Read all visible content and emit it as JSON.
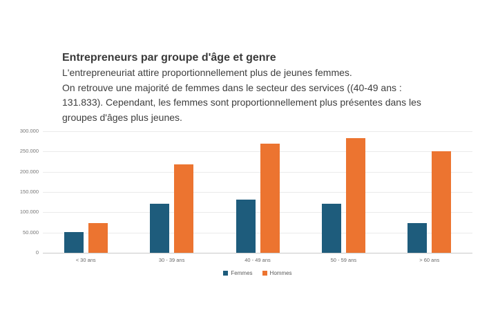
{
  "header": {
    "title": "Entrepreneurs par groupe d'âge et genre",
    "description_lines": [
      "L'entrepreneuriat attire proportionnellement plus de jeunes femmes.",
      "On retrouve une majorité de femmes dans le secteur des services ((40-49 ans :",
      "131.833). Cependant, les femmes sont proportionnellement plus présentes dans les",
      "groupes d'âges plus jeunes."
    ]
  },
  "chart_data": {
    "type": "bar",
    "title": "Entrepreneurs par groupe d'âge et genre",
    "categories": [
      "< 30 ans",
      "30 - 39 ans",
      "40 - 49 ans",
      "50 - 59 ans",
      "> 60 ans"
    ],
    "series": [
      {
        "name": "Femmes",
        "color": "#1E5C7C",
        "values": [
          51000,
          121000,
          131833,
          121000,
          74000
        ]
      },
      {
        "name": "Hommes",
        "color": "#EC7430",
        "values": [
          73000,
          218000,
          270000,
          283000,
          251000
        ]
      }
    ],
    "ylim": [
      0,
      300000
    ],
    "ytick_values": [
      0,
      50000,
      100000,
      150000,
      200000,
      250000,
      300000
    ],
    "ytick_labels": [
      "0",
      "50.000",
      "100.000",
      "150.000",
      "200.000",
      "250.000",
      "300.000"
    ],
    "xlabel": "",
    "ylabel": "",
    "grid": true,
    "legend_position": "bottom"
  },
  "colors": {
    "background": "#ffffff",
    "femmes": "#1E5C7C",
    "hommes": "#EC7430",
    "gridline": "#eaeaea",
    "axis_line": "#c9c9c9",
    "tick_text": "#757575",
    "body_text": "#3d3d3d"
  }
}
